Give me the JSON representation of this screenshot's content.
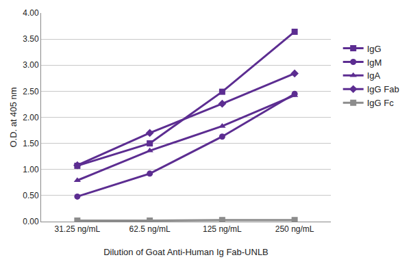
{
  "chart_data": {
    "type": "line",
    "x_label": "Dilution of Goat Anti-Human Ig Fab-UNLB",
    "y_label": "O.D. at 405 nm",
    "categories": [
      "31.25 ng/mL",
      "62.5 ng/mL",
      "125 ng/mL",
      "250 ng/mL"
    ],
    "series": [
      {
        "name": "IgG",
        "color": "#5c2d91",
        "marker": "square",
        "values": [
          1.07,
          1.5,
          2.49,
          3.64
        ]
      },
      {
        "name": "IgM",
        "color": "#5c2d91",
        "marker": "circle",
        "values": [
          0.48,
          0.92,
          1.63,
          2.45
        ]
      },
      {
        "name": "IgA",
        "color": "#5c2d91",
        "marker": "triangle-up",
        "values": [
          0.79,
          1.36,
          1.83,
          2.42
        ]
      },
      {
        "name": "IgG Fab",
        "color": "#5c2d91",
        "marker": "diamond",
        "values": [
          1.08,
          1.7,
          2.26,
          2.84
        ]
      },
      {
        "name": "IgG Fc",
        "color": "#8c8c8c",
        "marker": "square",
        "values": [
          0.02,
          0.02,
          0.03,
          0.03
        ]
      }
    ],
    "ylim": [
      0,
      4
    ],
    "yticks": [
      {
        "value": 0,
        "label": "0.00"
      },
      {
        "value": 0.5,
        "label": "0.50"
      },
      {
        "value": 1,
        "label": "1.00"
      },
      {
        "value": 1.5,
        "label": "1.50"
      },
      {
        "value": 2,
        "label": "2.00"
      },
      {
        "value": 2.5,
        "label": "2.50"
      },
      {
        "value": 3,
        "label": "3.00"
      },
      {
        "value": 3.5,
        "label": "3.50"
      },
      {
        "value": 4,
        "label": "4.00"
      }
    ],
    "grid": true,
    "legend": "right"
  }
}
